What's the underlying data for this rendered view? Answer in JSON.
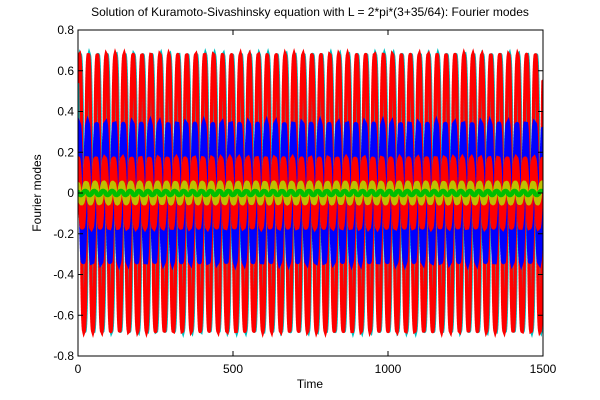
{
  "chart_data": {
    "type": "scatter",
    "title": "Solution of Kuramoto-Sivashinsky equation with L = 2*pi*(3+35/64): Fourier modes",
    "xlabel": "Time",
    "ylabel": "Fourier modes",
    "xlim": [
      0,
      1500
    ],
    "ylim": [
      -0.8,
      0.8
    ],
    "xticks": [
      0,
      500,
      1000,
      1500
    ],
    "yticks": [
      -0.8,
      -0.6,
      -0.4,
      -0.2,
      0,
      0.2,
      0.4,
      0.6,
      0.8
    ],
    "xtick_labels": [
      "0",
      "500",
      "1000",
      "1500"
    ],
    "ytick_labels": [
      "-0.8",
      "-0.6",
      "-0.4",
      "-0.2",
      "0",
      "0.2",
      "0.4",
      "0.6",
      "0.8"
    ],
    "grid": false,
    "legend": false,
    "oscillation_count": 52,
    "series": [
      {
        "color": "#00bfbf",
        "marker": "dot",
        "y_min": -0.68,
        "y_max": 0.68
      },
      {
        "color": "#ff0000",
        "marker": "dot",
        "y_min": -0.68,
        "y_max": 0.68
      },
      {
        "color": "#0000ff",
        "marker": "dot",
        "y_min": -0.34,
        "y_max": 0.34
      },
      {
        "color": "#ff0000",
        "marker": "dot",
        "y_min": -0.17,
        "y_max": 0.17
      },
      {
        "color": "#bfbf00",
        "marker": "dot",
        "y_min": -0.05,
        "y_max": 0.05
      },
      {
        "color": "#00bf00",
        "marker": "dot",
        "y_min": -0.01,
        "y_max": 0.01
      }
    ]
  }
}
